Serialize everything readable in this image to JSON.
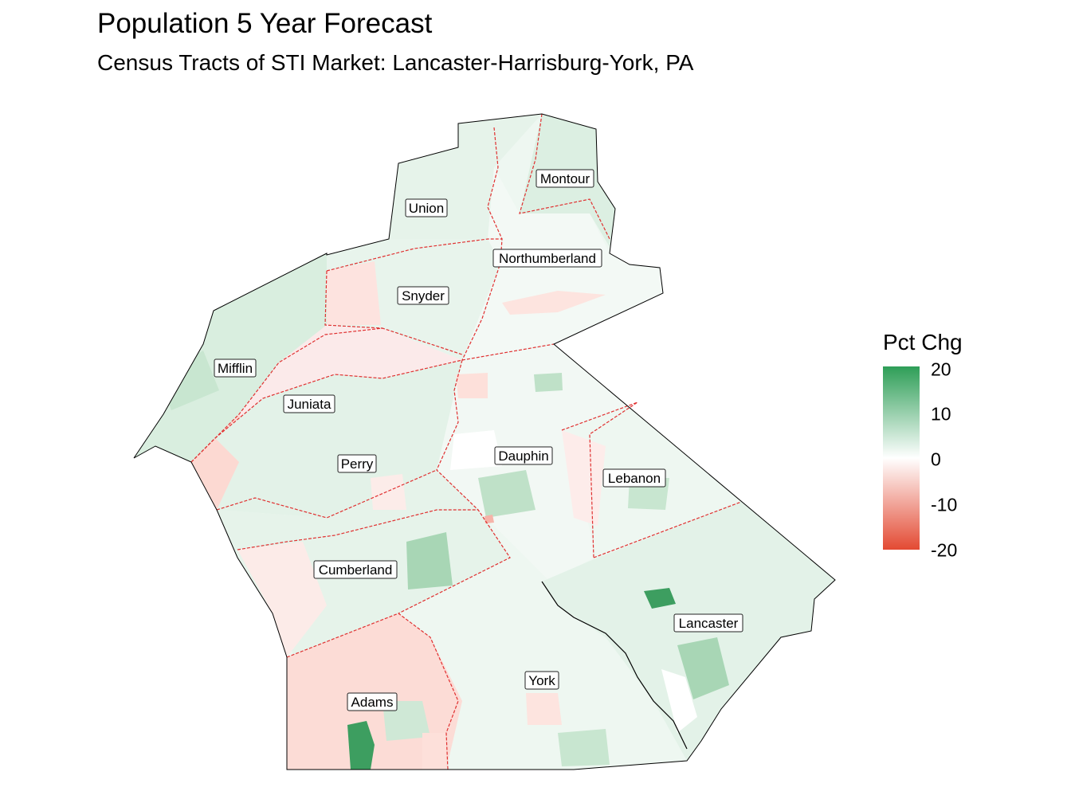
{
  "title": "Population 5 Year Forecast",
  "subtitle": "Census Tracts of STI Market: Lancaster-Harrisburg-York, PA",
  "legend": {
    "title": "Pct Chg",
    "ticks": [
      {
        "label": "20",
        "value": 20
      },
      {
        "label": "10",
        "value": 10
      },
      {
        "label": "0",
        "value": 0
      },
      {
        "label": "-10",
        "value": -10
      },
      {
        "label": "-20",
        "value": -20
      }
    ],
    "color_high": "#2e9e57",
    "color_mid": "#ffffff",
    "color_low": "#e34a33"
  },
  "colors": {
    "county_border": "#e03030",
    "outline": "#000000"
  },
  "counties": [
    {
      "name": "Montour",
      "pct_chg": 3
    },
    {
      "name": "Union",
      "pct_chg": 4
    },
    {
      "name": "Northumberland",
      "pct_chg": 1
    },
    {
      "name": "Snyder",
      "pct_chg": 2
    },
    {
      "name": "Mifflin",
      "pct_chg": 3
    },
    {
      "name": "Juniata",
      "pct_chg": -2
    },
    {
      "name": "Perry",
      "pct_chg": 3
    },
    {
      "name": "Dauphin",
      "pct_chg": 3
    },
    {
      "name": "Lebanon",
      "pct_chg": 2
    },
    {
      "name": "Cumberland",
      "pct_chg": 5
    },
    {
      "name": "Lancaster",
      "pct_chg": 5
    },
    {
      "name": "York",
      "pct_chg": 3
    },
    {
      "name": "Adams",
      "pct_chg": -3
    }
  ]
}
